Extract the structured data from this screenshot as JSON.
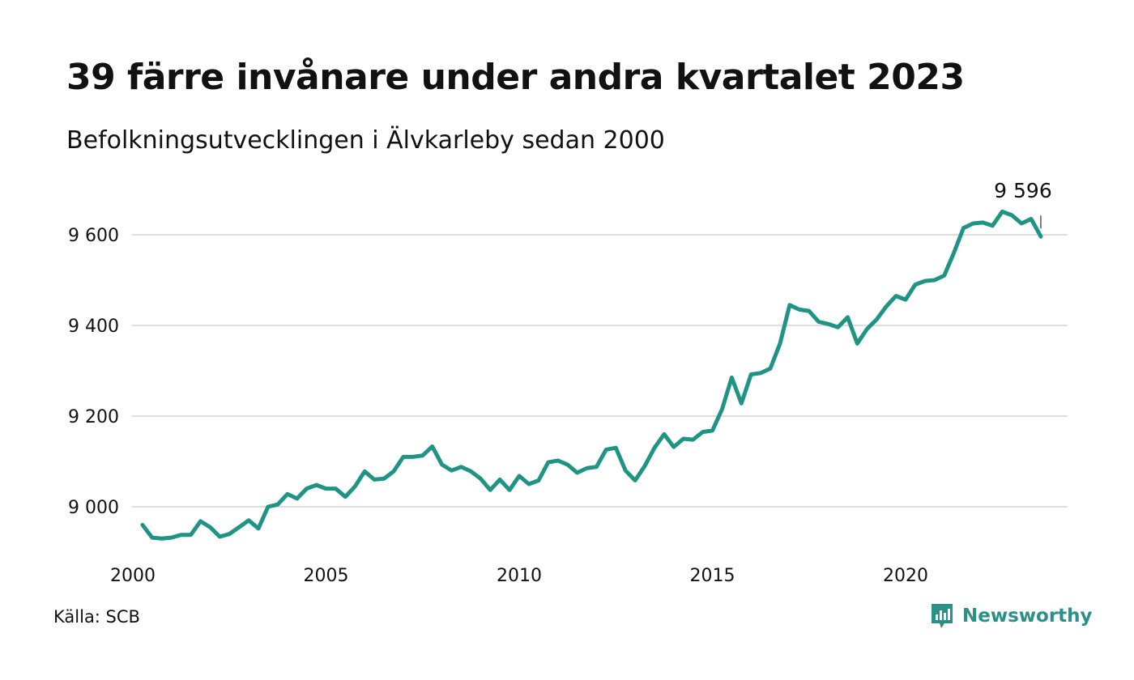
{
  "header": {
    "title": "39 färre invånare under andra kvartalet 2023",
    "subtitle": "Befolkningsutvecklingen i Älvkarleby sedan 2000"
  },
  "footer": {
    "source": "Källa: SCB",
    "brand": "Newsworthy",
    "brand_icon": "bar-chart-chat-icon"
  },
  "colors": {
    "line": "#1f9484",
    "grid": "#dedede",
    "brand": "#2a9186"
  },
  "chart_data": {
    "type": "line",
    "title": "39 färre invånare under andra kvartalet 2023",
    "subtitle": "Befolkningsutvecklingen i Älvkarleby sedan 2000",
    "xlabel": "",
    "ylabel": "",
    "xlim": [
      2000,
      2024
    ],
    "ylim": [
      8880,
      9700
    ],
    "x_ticks": [
      2000,
      2005,
      2010,
      2015,
      2020
    ],
    "x_tick_labels": [
      "2000",
      "2005",
      "2010",
      "2015",
      "2020"
    ],
    "y_ticks": [
      9000,
      9200,
      9400,
      9600
    ],
    "y_tick_labels": [
      "9 000",
      "9 200",
      "9 400",
      "9 600"
    ],
    "grid": "horizontal",
    "last_value_label": "9 596",
    "series": [
      {
        "x": [
          2000.25,
          2000.5,
          2000.75,
          2001.0,
          2001.25,
          2001.5,
          2001.75,
          2002.0,
          2002.25,
          2002.5,
          2002.75,
          2003.0,
          2003.25,
          2003.5,
          2003.75,
          2004.0,
          2004.25,
          2004.5,
          2004.75,
          2005.0,
          2005.25,
          2005.5,
          2005.75,
          2006.0,
          2006.25,
          2006.5,
          2006.75,
          2007.0,
          2007.25,
          2007.5,
          2007.75,
          2008.0,
          2008.25,
          2008.5,
          2008.75,
          2009.0,
          2009.25,
          2009.5,
          2009.75,
          2010.0,
          2010.25,
          2010.5,
          2010.75,
          2011.0,
          2011.25,
          2011.5,
          2011.75,
          2012.0,
          2012.25,
          2012.5,
          2012.75,
          2013.0,
          2013.25,
          2013.5,
          2013.75,
          2014.0,
          2014.25,
          2014.5,
          2014.75,
          2015.0,
          2015.25,
          2015.5,
          2015.75,
          2016.0,
          2016.25,
          2016.5,
          2016.75,
          2017.0,
          2017.25,
          2017.5,
          2017.75,
          2018.0,
          2018.25,
          2018.5,
          2018.75,
          2019.0,
          2019.25,
          2019.5,
          2019.75,
          2020.0,
          2020.25,
          2020.5,
          2020.75,
          2021.0,
          2021.25,
          2021.5,
          2021.75,
          2022.0,
          2022.25,
          2022.5,
          2022.75,
          2023.0,
          2023.25,
          2023.5
        ],
        "values": [
          8960,
          8932,
          8930,
          8932,
          8938,
          8938,
          8968,
          8955,
          8934,
          8940,
          8955,
          8970,
          8952,
          9000,
          9005,
          9028,
          9018,
          9040,
          9048,
          9040,
          9040,
          9022,
          9045,
          9078,
          9060,
          9062,
          9078,
          9110,
          9110,
          9113,
          9133,
          9093,
          9080,
          9088,
          9078,
          9062,
          9037,
          9060,
          9037,
          9068,
          9050,
          9058,
          9098,
          9102,
          9093,
          9075,
          9085,
          9088,
          9126,
          9130,
          9080,
          9058,
          9090,
          9130,
          9160,
          9132,
          9150,
          9148,
          9165,
          9168,
          9215,
          9285,
          9228,
          9292,
          9295,
          9305,
          9360,
          9445,
          9435,
          9432,
          9408,
          9403,
          9396,
          9418,
          9360,
          9392,
          9413,
          9442,
          9465,
          9457,
          9490,
          9498,
          9500,
          9510,
          9560,
          9615,
          9625,
          9627,
          9620,
          9651,
          9643,
          9625,
          9635,
          9596
        ]
      }
    ]
  }
}
